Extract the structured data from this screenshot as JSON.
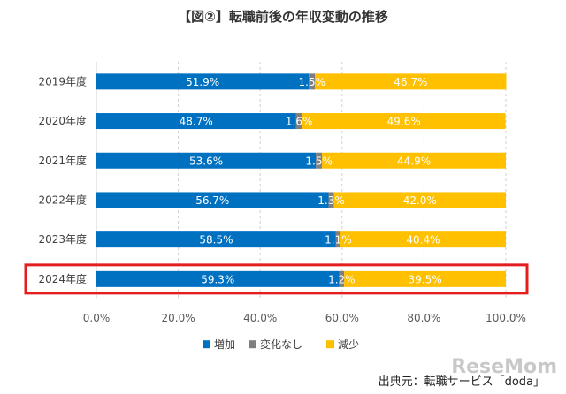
{
  "chart_data": {
    "type": "bar",
    "orientation": "horizontal",
    "stacked": true,
    "title": "【図②】転職前後の年収変動の推移",
    "categories": [
      "2019年度",
      "2020年度",
      "2021年度",
      "2022年度",
      "2023年度",
      "2024年度"
    ],
    "series": [
      {
        "name": "増加",
        "values": [
          51.9,
          48.7,
          53.6,
          56.7,
          58.5,
          59.3
        ],
        "color": "#0070c0"
      },
      {
        "name": "変化なし",
        "values": [
          1.5,
          1.6,
          1.5,
          1.3,
          1.1,
          1.2
        ],
        "color": "#7f7f7f"
      },
      {
        "name": "減少",
        "values": [
          46.7,
          49.6,
          44.9,
          42.0,
          40.4,
          39.5
        ],
        "color": "#ffc000"
      }
    ],
    "value_labels": [
      [
        "51.9%",
        "1.5%",
        "46.7%"
      ],
      [
        "48.7%",
        "1.6%",
        "49.6%"
      ],
      [
        "53.6%",
        "1.5%",
        "44.9%"
      ],
      [
        "56.7%",
        "1.3%",
        "42.0%"
      ],
      [
        "58.5%",
        "1.1%",
        "40.4%"
      ],
      [
        "59.3%",
        "1.2%",
        "39.5%"
      ]
    ],
    "xlim": [
      0,
      100
    ],
    "xticks": [
      "0.0%",
      "20.0%",
      "40.0%",
      "60.0%",
      "80.0%",
      "100.0%"
    ],
    "grid": "vertical dashed",
    "legend_position": "bottom",
    "highlighted_category": "2024年度",
    "highlight_color": "#e41e1e"
  },
  "source": "出典元：転職サービス「doda」",
  "watermark": "ReseMom"
}
